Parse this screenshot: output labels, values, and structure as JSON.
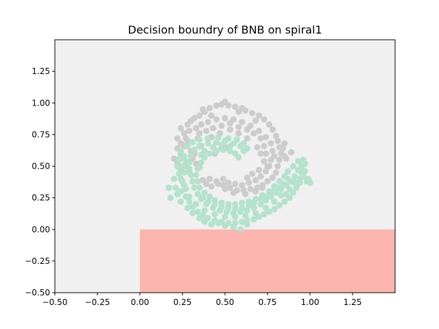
{
  "chart_data": {
    "type": "scatter",
    "title": "Decision boundry of BNB on spiral1",
    "xlabel": "",
    "ylabel": "",
    "xlim": [
      -0.5,
      1.5
    ],
    "ylim": [
      -0.5,
      1.5
    ],
    "xticks": [
      -0.5,
      -0.25,
      0.0,
      0.25,
      0.5,
      0.75,
      1.0,
      1.25
    ],
    "yticks": [
      -0.5,
      -0.25,
      0.0,
      0.25,
      0.5,
      0.75,
      1.0,
      1.25
    ],
    "xtick_labels": [
      "−0.50",
      "−0.25",
      "0.00",
      "0.25",
      "0.50",
      "0.75",
      "1.00",
      "1.25"
    ],
    "ytick_labels": [
      "−0.50",
      "−0.25",
      "0.00",
      "0.25",
      "0.50",
      "0.75",
      "1.00",
      "1.25"
    ],
    "grid": false,
    "regions": [
      {
        "class": "class-0",
        "color": "#f0f0f0",
        "x": [
          -0.5,
          1.5
        ],
        "y": [
          -0.5,
          1.5
        ]
      },
      {
        "class": "class-1",
        "color": "#fbb4ae",
        "x": [
          0.0,
          1.5
        ],
        "y": [
          -0.5,
          0.0
        ]
      }
    ],
    "series": [
      {
        "color": "#cccccc",
        "points": [
          [
            0.2,
            0.56
          ],
          [
            0.22,
            0.52
          ],
          [
            0.24,
            0.48
          ],
          [
            0.27,
            0.5
          ],
          [
            0.29,
            0.46
          ],
          [
            0.31,
            0.56
          ],
          [
            0.24,
            0.6
          ],
          [
            0.22,
            0.64
          ],
          [
            0.24,
            0.68
          ],
          [
            0.22,
            0.72
          ],
          [
            0.26,
            0.76
          ],
          [
            0.24,
            0.8
          ],
          [
            0.28,
            0.83
          ],
          [
            0.27,
            0.72
          ],
          [
            0.3,
            0.86
          ],
          [
            0.32,
            0.88
          ],
          [
            0.35,
            0.9
          ],
          [
            0.38,
            0.93
          ],
          [
            0.41,
            0.96
          ],
          [
            0.45,
            0.98
          ],
          [
            0.48,
            0.99
          ],
          [
            0.52,
            0.98
          ],
          [
            0.56,
            0.97
          ],
          [
            0.6,
            0.96
          ],
          [
            0.62,
            0.94
          ],
          [
            0.66,
            0.92
          ],
          [
            0.7,
            0.9
          ],
          [
            0.73,
            0.87
          ],
          [
            0.76,
            0.83
          ],
          [
            0.78,
            0.79
          ],
          [
            0.8,
            0.74
          ],
          [
            0.81,
            0.7
          ],
          [
            0.82,
            0.65
          ],
          [
            0.83,
            0.6
          ],
          [
            0.82,
            0.55
          ],
          [
            0.81,
            0.5
          ],
          [
            0.8,
            0.45
          ],
          [
            0.78,
            0.41
          ],
          [
            0.75,
            0.38
          ],
          [
            0.72,
            0.35
          ],
          [
            0.69,
            0.33
          ],
          [
            0.65,
            0.32
          ],
          [
            0.61,
            0.31
          ],
          [
            0.57,
            0.31
          ],
          [
            0.53,
            0.33
          ],
          [
            0.49,
            0.35
          ],
          [
            0.46,
            0.36
          ],
          [
            0.42,
            0.34
          ],
          [
            0.39,
            0.36
          ],
          [
            0.37,
            0.39
          ],
          [
            0.41,
            0.4
          ],
          [
            0.45,
            0.38
          ],
          [
            0.49,
            0.4
          ],
          [
            0.52,
            0.37
          ],
          [
            0.56,
            0.36
          ],
          [
            0.6,
            0.35
          ],
          [
            0.64,
            0.37
          ],
          [
            0.68,
            0.39
          ],
          [
            0.71,
            0.42
          ],
          [
            0.74,
            0.46
          ],
          [
            0.76,
            0.5
          ],
          [
            0.77,
            0.55
          ],
          [
            0.78,
            0.62
          ],
          [
            0.77,
            0.68
          ],
          [
            0.74,
            0.73
          ],
          [
            0.7,
            0.78
          ],
          [
            0.65,
            0.82
          ],
          [
            0.6,
            0.85
          ],
          [
            0.55,
            0.87
          ],
          [
            0.5,
            0.88
          ],
          [
            0.45,
            0.87
          ],
          [
            0.4,
            0.85
          ],
          [
            0.36,
            0.83
          ],
          [
            0.33,
            0.8
          ],
          [
            0.29,
            0.78
          ],
          [
            0.35,
            0.76
          ],
          [
            0.39,
            0.78
          ],
          [
            0.43,
            0.8
          ],
          [
            0.48,
            0.82
          ],
          [
            0.53,
            0.84
          ],
          [
            0.58,
            0.81
          ],
          [
            0.63,
            0.79
          ],
          [
            0.67,
            0.76
          ],
          [
            0.71,
            0.72
          ],
          [
            0.73,
            0.66
          ],
          [
            0.74,
            0.6
          ],
          [
            0.73,
            0.54
          ],
          [
            0.75,
            0.5
          ],
          [
            0.79,
            0.58
          ],
          [
            0.85,
            0.58
          ],
          [
            0.84,
            0.64
          ],
          [
            0.86,
            0.56
          ],
          [
            0.89,
            0.61
          ],
          [
            0.85,
            0.68
          ],
          [
            0.3,
            0.58
          ],
          [
            0.32,
            0.6
          ],
          [
            0.3,
            0.62
          ],
          [
            0.48,
            0.64
          ],
          [
            0.51,
            0.65
          ],
          [
            0.44,
            0.6
          ],
          [
            0.5,
            0.32
          ],
          [
            0.55,
            0.29
          ],
          [
            0.62,
            0.28
          ],
          [
            0.68,
            0.3
          ],
          [
            0.72,
            0.33
          ],
          [
            0.33,
            0.52
          ],
          [
            0.35,
            0.49
          ],
          [
            0.36,
            0.66
          ],
          [
            0.5,
            1.01
          ],
          [
            0.58,
            0.93
          ],
          [
            0.68,
            0.86
          ],
          [
            0.42,
            0.9
          ],
          [
            0.37,
            0.95
          ],
          [
            0.66,
            0.44
          ],
          [
            0.7,
            0.47
          ],
          [
            0.63,
            0.41
          ],
          [
            0.71,
            0.6
          ],
          [
            0.69,
            0.65
          ],
          [
            0.26,
            0.66
          ],
          [
            0.28,
            0.7
          ],
          [
            0.24,
            0.56
          ],
          [
            0.34,
            0.72
          ],
          [
            0.63,
            0.72
          ],
          [
            0.58,
            0.76
          ],
          [
            0.53,
            0.79
          ],
          [
            0.47,
            0.76
          ],
          [
            0.42,
            0.73
          ]
        ]
      },
      {
        "color": "#b3e2cd",
        "points": [
          [
            0.24,
            0.62
          ],
          [
            0.26,
            0.58
          ],
          [
            0.27,
            0.54
          ],
          [
            0.25,
            0.5
          ],
          [
            0.26,
            0.45
          ],
          [
            0.24,
            0.4
          ],
          [
            0.26,
            0.35
          ],
          [
            0.24,
            0.3
          ],
          [
            0.27,
            0.26
          ],
          [
            0.29,
            0.22
          ],
          [
            0.31,
            0.18
          ],
          [
            0.34,
            0.14
          ],
          [
            0.37,
            0.11
          ],
          [
            0.4,
            0.09
          ],
          [
            0.44,
            0.07
          ],
          [
            0.48,
            0.06
          ],
          [
            0.52,
            0.05
          ],
          [
            0.56,
            0.05
          ],
          [
            0.6,
            0.06
          ],
          [
            0.63,
            0.07
          ],
          [
            0.67,
            0.08
          ],
          [
            0.7,
            0.1
          ],
          [
            0.73,
            0.12
          ],
          [
            0.76,
            0.14
          ],
          [
            0.79,
            0.16
          ],
          [
            0.82,
            0.19
          ],
          [
            0.85,
            0.22
          ],
          [
            0.88,
            0.25
          ],
          [
            0.9,
            0.29
          ],
          [
            0.92,
            0.33
          ],
          [
            0.94,
            0.37
          ],
          [
            0.96,
            0.42
          ],
          [
            0.97,
            0.46
          ],
          [
            0.98,
            0.38
          ],
          [
            1.0,
            0.37
          ],
          [
            0.95,
            0.5
          ],
          [
            0.93,
            0.54
          ],
          [
            0.9,
            0.5
          ],
          [
            0.87,
            0.46
          ],
          [
            0.85,
            0.42
          ],
          [
            0.82,
            0.38
          ],
          [
            0.79,
            0.34
          ],
          [
            0.76,
            0.3
          ],
          [
            0.72,
            0.27
          ],
          [
            0.68,
            0.24
          ],
          [
            0.64,
            0.22
          ],
          [
            0.6,
            0.21
          ],
          [
            0.56,
            0.2
          ],
          [
            0.52,
            0.2
          ],
          [
            0.48,
            0.21
          ],
          [
            0.44,
            0.23
          ],
          [
            0.41,
            0.26
          ],
          [
            0.38,
            0.29
          ],
          [
            0.35,
            0.33
          ],
          [
            0.34,
            0.38
          ],
          [
            0.33,
            0.43
          ],
          [
            0.34,
            0.48
          ],
          [
            0.36,
            0.53
          ],
          [
            0.38,
            0.57
          ],
          [
            0.41,
            0.6
          ],
          [
            0.45,
            0.62
          ],
          [
            0.49,
            0.63
          ],
          [
            0.53,
            0.62
          ],
          [
            0.56,
            0.6
          ],
          [
            0.58,
            0.57
          ],
          [
            0.61,
            0.62
          ],
          [
            0.59,
            0.66
          ],
          [
            0.55,
            0.68
          ],
          [
            0.5,
            0.7
          ],
          [
            0.45,
            0.69
          ],
          [
            0.4,
            0.68
          ],
          [
            0.35,
            0.66
          ],
          [
            0.32,
            0.63
          ],
          [
            0.3,
            0.58
          ],
          [
            0.29,
            0.53
          ],
          [
            0.29,
            0.48
          ],
          [
            0.3,
            0.43
          ],
          [
            0.31,
            0.38
          ],
          [
            0.32,
            0.33
          ],
          [
            0.34,
            0.28
          ],
          [
            0.36,
            0.24
          ],
          [
            0.39,
            0.2
          ],
          [
            0.43,
            0.17
          ],
          [
            0.47,
            0.15
          ],
          [
            0.51,
            0.14
          ],
          [
            0.55,
            0.13
          ],
          [
            0.59,
            0.14
          ],
          [
            0.63,
            0.15
          ],
          [
            0.67,
            0.17
          ],
          [
            0.71,
            0.2
          ],
          [
            0.74,
            0.23
          ],
          [
            0.77,
            0.26
          ],
          [
            0.8,
            0.29
          ],
          [
            0.83,
            0.32
          ],
          [
            0.86,
            0.35
          ],
          [
            0.89,
            0.38
          ],
          [
            0.91,
            0.42
          ],
          [
            0.93,
            0.47
          ],
          [
            0.96,
            0.55
          ],
          [
            0.83,
            0.27
          ],
          [
            0.79,
            0.22
          ],
          [
            0.74,
            0.17
          ],
          [
            0.68,
            0.13
          ],
          [
            0.62,
            0.11
          ],
          [
            0.56,
            0.1
          ],
          [
            0.5,
            0.1
          ],
          [
            0.44,
            0.12
          ],
          [
            0.38,
            0.15
          ],
          [
            0.33,
            0.2
          ],
          [
            0.29,
            0.26
          ],
          [
            0.27,
            0.32
          ],
          [
            0.25,
            0.38
          ],
          [
            0.23,
            0.44
          ],
          [
            0.22,
            0.5
          ],
          [
            0.23,
            0.56
          ],
          [
            0.28,
            0.66
          ],
          [
            0.31,
            0.69
          ],
          [
            0.35,
            0.71
          ],
          [
            0.4,
            0.72
          ],
          [
            0.46,
            0.73
          ],
          [
            0.52,
            0.72
          ],
          [
            0.57,
            0.71
          ],
          [
            0.61,
            0.68
          ],
          [
            0.63,
            0.64
          ],
          [
            0.21,
            0.33
          ],
          [
            0.18,
            0.25
          ],
          [
            0.17,
            0.33
          ],
          [
            0.2,
            0.4
          ],
          [
            0.59,
            0.0
          ],
          [
            0.63,
            0.04
          ],
          [
            0.55,
            0.02
          ],
          [
            0.5,
            0.03
          ],
          [
            0.46,
            0.05
          ],
          [
            0.42,
            0.04
          ],
          [
            0.38,
            0.06
          ],
          [
            0.35,
            0.09
          ],
          [
            0.31,
            0.13
          ],
          [
            0.28,
            0.17
          ],
          [
            0.24,
            0.22
          ],
          [
            0.22,
            0.28
          ],
          [
            0.86,
            0.28
          ],
          [
            0.88,
            0.32
          ],
          [
            0.91,
            0.37
          ],
          [
            0.94,
            0.4
          ],
          [
            0.95,
            0.45
          ],
          [
            0.99,
            0.4
          ],
          [
            0.97,
            0.52
          ],
          [
            0.87,
            0.4
          ],
          [
            0.84,
            0.36
          ],
          [
            0.81,
            0.33
          ],
          [
            0.78,
            0.3
          ],
          [
            0.75,
            0.26
          ],
          [
            0.71,
            0.24
          ],
          [
            0.67,
            0.21
          ],
          [
            0.64,
            0.19
          ],
          [
            0.6,
            0.17
          ],
          [
            0.56,
            0.17
          ],
          [
            0.52,
            0.17
          ],
          [
            0.48,
            0.18
          ],
          [
            0.44,
            0.2
          ],
          [
            0.4,
            0.22
          ],
          [
            0.37,
            0.25
          ],
          [
            0.53,
            0.66
          ],
          [
            0.48,
            0.67
          ],
          [
            0.43,
            0.65
          ],
          [
            0.38,
            0.62
          ],
          [
            0.36,
            0.59
          ]
        ]
      }
    ]
  }
}
